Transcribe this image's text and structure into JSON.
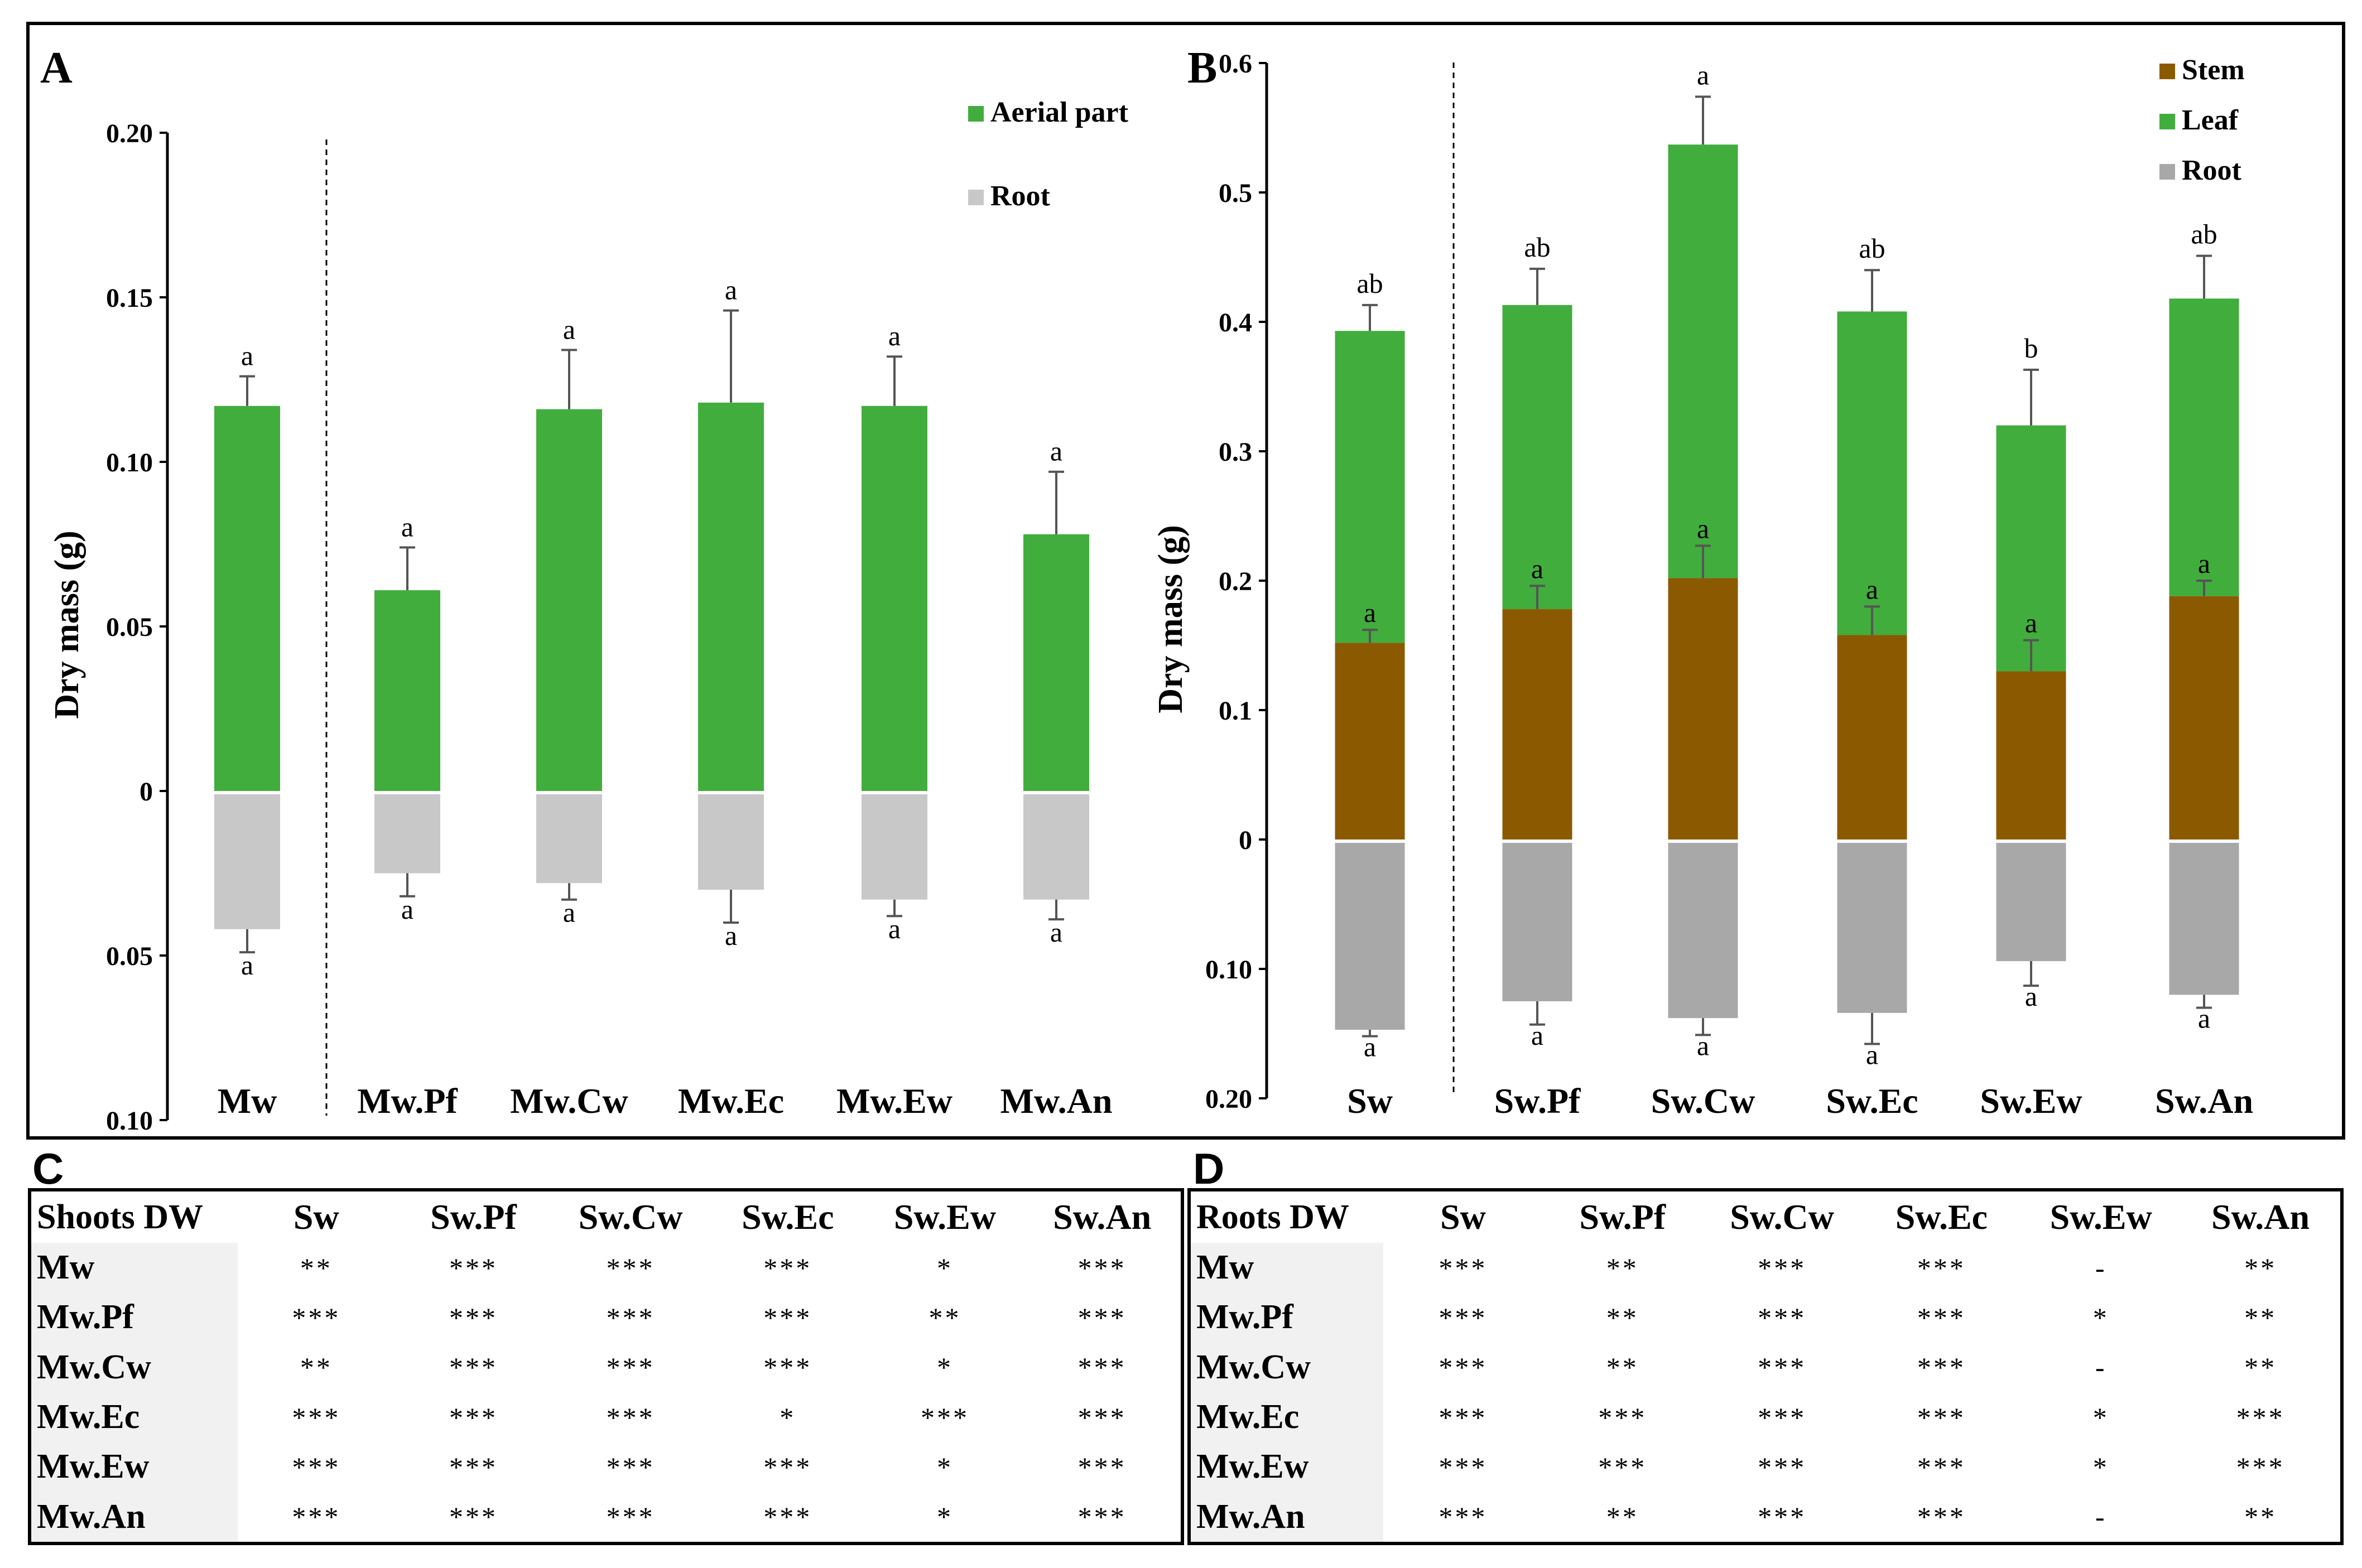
{
  "chart_data": [
    {
      "panel": "A",
      "type": "bar",
      "ylabel": "Dry mass (g)",
      "categories": [
        "Mw",
        "Mw.Pf",
        "Mw.Cw",
        "Mw.Ec",
        "Mw.Ew",
        "Mw.An"
      ],
      "positive_ticks": [
        "0",
        "0.05",
        "0.10",
        "0.15",
        "0.20"
      ],
      "negative_ticks": [
        "0.05",
        "0.10"
      ],
      "ylim": [
        -0.1,
        0.2
      ],
      "legend": [
        {
          "name": "Aerial part",
          "color": "#41ad3d"
        },
        {
          "name": "Root",
          "color": "#c8c8c8"
        }
      ],
      "series": [
        {
          "name": "Aerial part",
          "color": "#41ad3d",
          "values": [
            0.117,
            0.061,
            0.116,
            0.118,
            0.117,
            0.078
          ],
          "errors": [
            0.009,
            0.013,
            0.018,
            0.028,
            0.015,
            0.019
          ],
          "letters": [
            "a",
            "a",
            "a",
            "a",
            "a",
            "a"
          ]
        },
        {
          "name": "Root",
          "color": "#c8c8c8",
          "values": [
            0.042,
            0.025,
            0.028,
            0.03,
            0.033,
            0.033
          ],
          "errors": [
            0.007,
            0.007,
            0.005,
            0.01,
            0.005,
            0.006
          ],
          "letters": [
            "a",
            "a",
            "a",
            "a",
            "a",
            "a"
          ]
        }
      ]
    },
    {
      "panel": "B",
      "type": "bar",
      "ylabel": "Dry mass (g)",
      "categories": [
        "Sw",
        "Sw.Pf",
        "Sw.Cw",
        "Sw.Ec",
        "Sw.Ew",
        "Sw.An"
      ],
      "positive_ticks": [
        "0",
        "0.1",
        "0.2",
        "0.3",
        "0.4",
        "0.5",
        "0.6"
      ],
      "negative_ticks": [
        "0.10",
        "0.20"
      ],
      "ylim": [
        -0.2,
        0.6
      ],
      "legend": [
        {
          "name": "Stem",
          "color": "#8b5a00"
        },
        {
          "name": "Leaf",
          "color": "#41ad3d"
        },
        {
          "name": "Root",
          "color": "#a8a8a8"
        }
      ],
      "series": [
        {
          "name": "Stem",
          "color": "#8b5a00",
          "values": [
            0.152,
            0.178,
            0.202,
            0.158,
            0.13,
            0.188
          ],
          "errors": [
            0.01,
            0.018,
            0.025,
            0.022,
            0.024,
            0.012
          ],
          "letters": [
            "a",
            "a",
            "a",
            "a",
            "a",
            "a"
          ]
        },
        {
          "name": "Leaf",
          "color": "#41ad3d",
          "totals": [
            0.393,
            0.413,
            0.537,
            0.408,
            0.32,
            0.418
          ],
          "errors": [
            0.02,
            0.028,
            0.037,
            0.032,
            0.043,
            0.033
          ],
          "letters": [
            "ab",
            "ab",
            "a",
            "ab",
            "b",
            "ab"
          ]
        },
        {
          "name": "Root",
          "color": "#a8a8a8",
          "values": [
            0.147,
            0.125,
            0.138,
            0.134,
            0.094,
            0.12
          ],
          "errors": [
            0.005,
            0.018,
            0.013,
            0.024,
            0.019,
            0.01
          ],
          "letters": [
            "a",
            "a",
            "a",
            "a",
            "a",
            "a"
          ]
        }
      ]
    }
  ],
  "tables": {
    "C": {
      "letter": "C",
      "corner": "Shoots DW",
      "columns": [
        "Sw",
        "Sw.Pf",
        "Sw.Cw",
        "Sw.Ec",
        "Sw.Ew",
        "Sw.An"
      ],
      "rows": [
        {
          "label": "Mw",
          "cells": [
            "**",
            "***",
            "***",
            "***",
            "*",
            "***"
          ]
        },
        {
          "label": "Mw.Pf",
          "cells": [
            "***",
            "***",
            "***",
            "***",
            "**",
            "***"
          ]
        },
        {
          "label": "Mw.Cw",
          "cells": [
            "**",
            "***",
            "***",
            "***",
            "*",
            "***"
          ]
        },
        {
          "label": "Mw.Ec",
          "cells": [
            "***",
            "***",
            "***",
            "*",
            "***",
            "***"
          ]
        },
        {
          "label": "Mw.Ew",
          "cells": [
            "***",
            "***",
            "***",
            "***",
            "*",
            "***"
          ]
        },
        {
          "label": "Mw.An",
          "cells": [
            "***",
            "***",
            "***",
            "***",
            "*",
            "***"
          ]
        }
      ]
    },
    "D": {
      "letter": "D",
      "corner": "Roots DW",
      "columns": [
        "Sw",
        "Sw.Pf",
        "Sw.Cw",
        "Sw.Ec",
        "Sw.Ew",
        "Sw.An"
      ],
      "rows": [
        {
          "label": "Mw",
          "cells": [
            "***",
            "**",
            "***",
            "***",
            "-",
            "**"
          ]
        },
        {
          "label": "Mw.Pf",
          "cells": [
            "***",
            "**",
            "***",
            "***",
            "*",
            "**"
          ]
        },
        {
          "label": "Mw.Cw",
          "cells": [
            "***",
            "**",
            "***",
            "***",
            "-",
            "**"
          ]
        },
        {
          "label": "Mw.Ec",
          "cells": [
            "***",
            "***",
            "***",
            "***",
            "*",
            "***"
          ]
        },
        {
          "label": "Mw.Ew",
          "cells": [
            "***",
            "***",
            "***",
            "***",
            "*",
            "***"
          ]
        },
        {
          "label": "Mw.An",
          "cells": [
            "***",
            "**",
            "***",
            "***",
            "-",
            "**"
          ]
        }
      ]
    }
  }
}
